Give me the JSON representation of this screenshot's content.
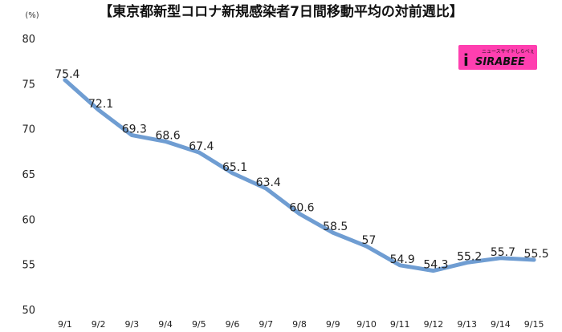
{
  "chart_data": {
    "type": "line",
    "title": "【東京都新型コロナ新規感染者7日間移動平均の対前週比】",
    "ylabel": "(%)",
    "xlabel": "",
    "categories": [
      "9/1",
      "9/2",
      "9/3",
      "9/4",
      "9/5",
      "9/6",
      "9/7",
      "9/8",
      "9/9",
      "9/10",
      "9/11",
      "9/12",
      "9/13",
      "9/14",
      "9/15"
    ],
    "values": [
      75.4,
      72.1,
      69.3,
      68.6,
      67.4,
      65.1,
      63.4,
      60.6,
      58.5,
      57,
      54.9,
      54.3,
      55.2,
      55.7,
      55.5
    ],
    "data_labels": [
      "75.4",
      "72.1",
      "69.3",
      "68.6",
      "67.4",
      "65.1",
      "63.4",
      "60.6",
      "58.5",
      "57",
      "54.9",
      "54.3",
      "55.2",
      "55.7",
      "55.5"
    ],
    "ylim": [
      50,
      80
    ],
    "yticks": [
      "50",
      "55",
      "60",
      "65",
      "70",
      "75",
      "80"
    ],
    "grid": false,
    "line_color": "#6f9dd2"
  },
  "logo": {
    "brand": "SIRABEE",
    "tagline": "ニュースサイトしらべぇ",
    "badge_color": "#ff3fb0"
  }
}
